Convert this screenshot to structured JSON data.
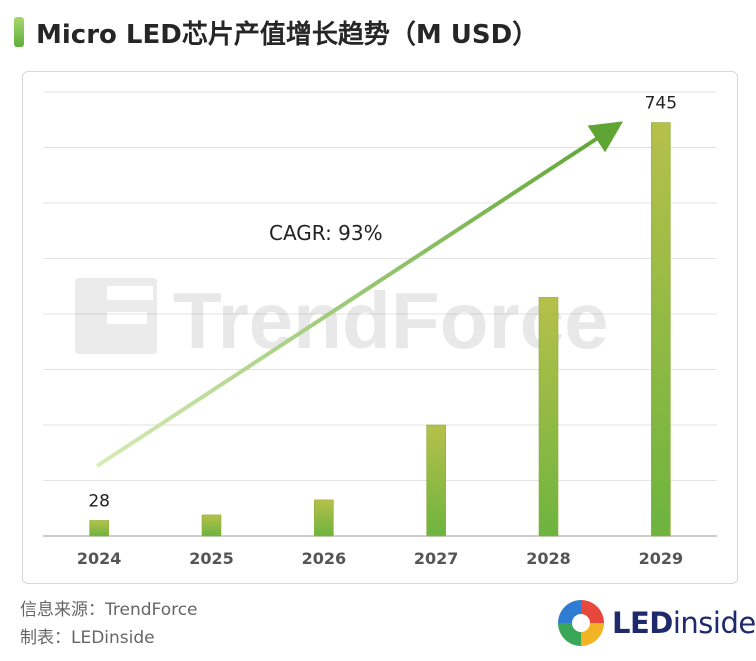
{
  "header": {
    "title": "Micro LED芯片产值增长趋势（M USD）"
  },
  "chart_data": {
    "type": "bar",
    "categories": [
      "2024",
      "2025",
      "2026",
      "2027",
      "2028",
      "2029"
    ],
    "values": [
      28,
      38,
      65,
      200,
      430,
      745
    ],
    "labeled_values": [
      "28",
      "",
      "",
      "",
      "",
      "745"
    ],
    "title": "Micro LED芯片产值增长趋势（M USD）",
    "xlabel": "",
    "ylabel": "",
    "ylim": [
      0,
      800
    ],
    "grid": true,
    "legend": "none",
    "annotation": "CAGR: 93%",
    "bar_color_top": "#b6c04a",
    "bar_color_bottom": "#6db43f",
    "arrow_color": "#5fa534"
  },
  "watermark": "TrendForce",
  "footer": {
    "source": "信息来源：TrendForce",
    "maker": "制表：LEDinside"
  },
  "logo": {
    "text_bold": "LED",
    "text_light": "inside"
  }
}
